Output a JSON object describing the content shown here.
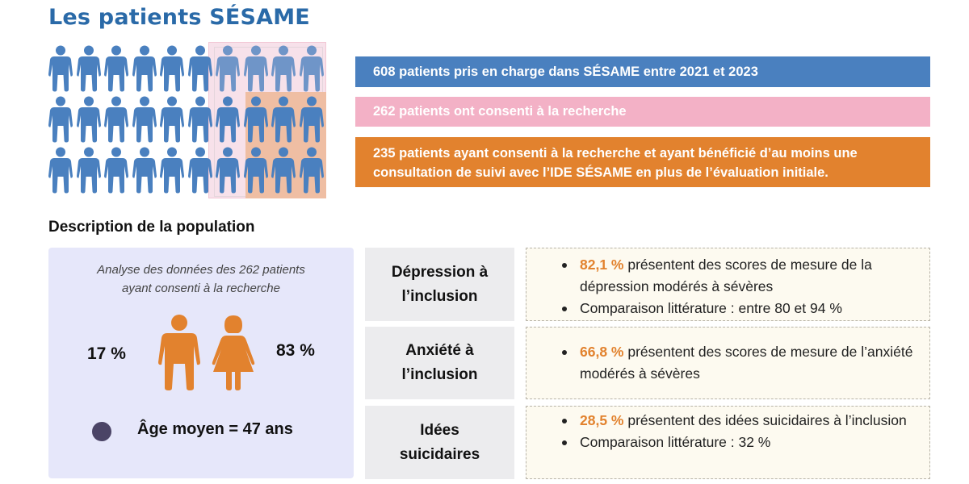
{
  "title": "Les patients SÉSAME",
  "colors": {
    "title": "#2a6aa8",
    "blue": "#4a80bf",
    "pink": "#f3b1c6",
    "orange": "#e2822e",
    "panel": "#e6e7fa"
  },
  "people_grid": {
    "rows": 3,
    "cols": 10,
    "icon": "person-icon"
  },
  "banners": [
    {
      "text": "608 patients pris en charge dans SÉSAME entre 2021 et 2023"
    },
    {
      "text": "262 patients ont consenti à la recherche"
    },
    {
      "line1": "235 patients ayant consenti à la recherche et ayant bénéficié d’au moins une",
      "line2": "consultation de suivi avec l’IDE SÉSAME en plus de l’évaluation initiale."
    }
  ],
  "section_title": "Description de la population",
  "panel": {
    "note_line1": "Analyse des données des 262 patients",
    "note_line2": "ayant consenti à la recherche",
    "male_pct": "17 %",
    "female_pct": "83 %",
    "age": "Âge moyen = 47 ans"
  },
  "categories": [
    {
      "line1": "Dépression à",
      "line2": "l’inclusion"
    },
    {
      "line1": "Anxiété à",
      "line2": "l’inclusion"
    },
    {
      "line1": "Idées",
      "line2": "suicidaires"
    }
  ],
  "details": {
    "depression": {
      "item1_value": "82,1 %",
      "item1_text": " présentent des scores de mesure de la dépression modérés à sévères",
      "item2_text": "Comparaison littérature : entre 80 et 94 %"
    },
    "anxiety": {
      "item1_value": "66,8 %",
      "item1_text": " présentent des scores de mesure de l’anxiété modérés à sévères"
    },
    "suicidal": {
      "item1_value": "28,5 %",
      "item1_text": " présentent des idées suicidaires à l’inclusion",
      "item2_text": "Comparaison littérature : 32 %"
    }
  }
}
